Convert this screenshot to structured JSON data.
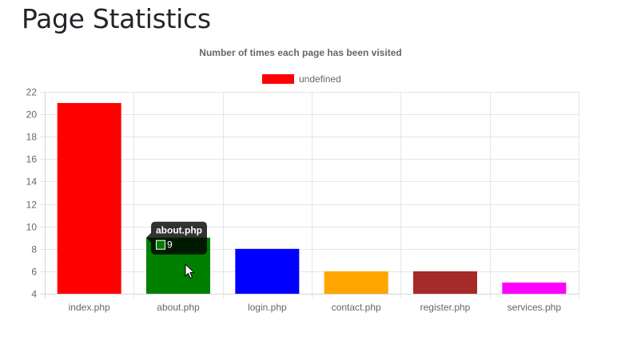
{
  "page": {
    "title": "Page Statistics"
  },
  "chart_data": {
    "type": "bar",
    "title": "Number of times each page has been visited",
    "legend": {
      "label": "undefined",
      "color": "#ff0000",
      "position": "top"
    },
    "categories": [
      "index.php",
      "about.php",
      "login.php",
      "contact.php",
      "register.php",
      "services.php"
    ],
    "values": [
      21,
      9,
      8,
      6,
      6,
      5
    ],
    "colors": [
      "#ff0000",
      "#008000",
      "#0000ff",
      "#ffa500",
      "#a52a2a",
      "#ff00ff"
    ],
    "ylim": [
      4,
      22
    ],
    "yticks": [
      4,
      6,
      8,
      10,
      12,
      14,
      16,
      18,
      20,
      22
    ],
    "xlabel": "",
    "ylabel": "",
    "grid": true
  },
  "tooltip": {
    "title": "about.php",
    "value": "9",
    "color": "#008000",
    "category_index": 1
  }
}
